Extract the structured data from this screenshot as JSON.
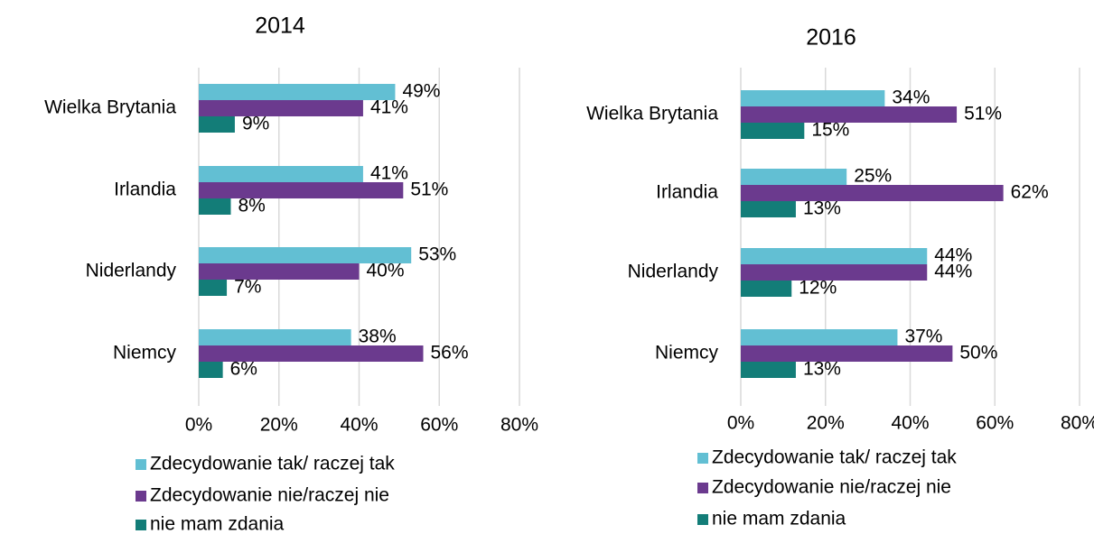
{
  "chart_data": [
    {
      "type": "hbar",
      "title": "2014",
      "categories": [
        "Wielka Brytania",
        "Irlandia",
        "Niderlandy",
        "Niemcy"
      ],
      "series": [
        {
          "name": "Zdecydowanie tak/ raczej tak",
          "color": "#62bfd3",
          "values": [
            49,
            41,
            53,
            38
          ],
          "value_labels": [
            "49%",
            "41%",
            "53%",
            "38%"
          ]
        },
        {
          "name": "Zdecydowanie nie/raczej nie",
          "color": "#6b3a8e",
          "values": [
            41,
            51,
            40,
            56
          ],
          "value_labels": [
            "41%",
            "51%",
            "40%",
            "56%"
          ]
        },
        {
          "name": "nie mam zdania",
          "color": "#137d78",
          "values": [
            9,
            8,
            7,
            6
          ],
          "value_labels": [
            "9%",
            "8%",
            "7%",
            "6%"
          ]
        }
      ],
      "xlim": [
        0,
        80
      ],
      "xticks": [
        {
          "value": 0,
          "label": "0%"
        },
        {
          "value": 20,
          "label": "20%"
        },
        {
          "value": 40,
          "label": "40%"
        },
        {
          "value": 60,
          "label": "60%"
        },
        {
          "value": 80,
          "label": "80%"
        }
      ],
      "grid": true,
      "legend": "bottom"
    },
    {
      "type": "hbar",
      "title": "2016",
      "categories": [
        "Wielka Brytania",
        "Irlandia",
        "Niderlandy",
        "Niemcy"
      ],
      "series": [
        {
          "name": "Zdecydowanie tak/ raczej tak",
          "color": "#62bfd3",
          "values": [
            34,
            25,
            44,
            37
          ],
          "value_labels": [
            "34%",
            "25%",
            "44%",
            "37%"
          ]
        },
        {
          "name": "Zdecydowanie nie/raczej nie",
          "color": "#6b3a8e",
          "values": [
            51,
            62,
            44,
            50
          ],
          "value_labels": [
            "51%",
            "62%",
            "44%",
            "50%"
          ]
        },
        {
          "name": "nie mam zdania",
          "color": "#137d78",
          "values": [
            15,
            13,
            12,
            13
          ],
          "value_labels": [
            "15%",
            "13%",
            "12%",
            "13%"
          ]
        }
      ],
      "xlim": [
        0,
        80
      ],
      "xticks": [
        {
          "value": 0,
          "label": "0%"
        },
        {
          "value": 20,
          "label": "20%"
        },
        {
          "value": 40,
          "label": "40%"
        },
        {
          "value": 60,
          "label": "60%"
        },
        {
          "value": 80,
          "label": "80%"
        }
      ],
      "grid": true,
      "legend": "bottom"
    }
  ]
}
